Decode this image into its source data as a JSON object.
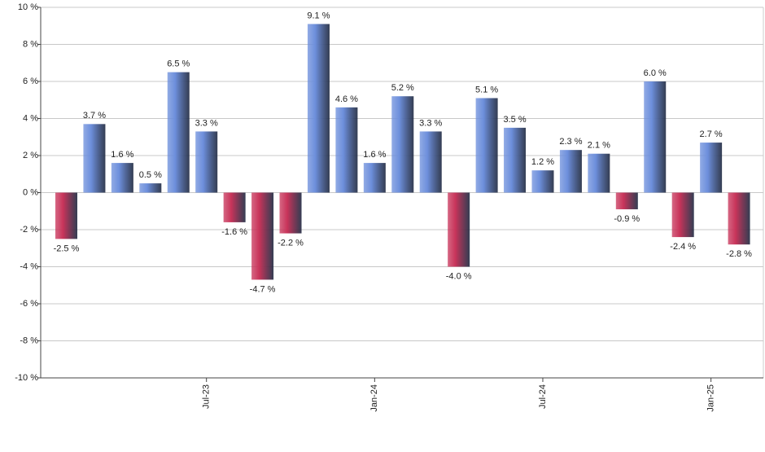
{
  "chart_data": {
    "type": "bar",
    "categories": [
      null,
      null,
      null,
      null,
      null,
      "Jul-23",
      null,
      null,
      null,
      null,
      null,
      "Jan-24",
      null,
      null,
      null,
      null,
      null,
      "Jul-24",
      null,
      null,
      null,
      null,
      null,
      "Jan-25",
      null
    ],
    "values": [
      -2.5,
      3.7,
      1.6,
      0.5,
      6.5,
      3.3,
      -1.6,
      -4.7,
      -2.2,
      9.1,
      4.6,
      1.6,
      5.2,
      3.3,
      -4.0,
      5.1,
      3.5,
      1.2,
      2.3,
      2.1,
      -0.9,
      6.0,
      -2.4,
      2.7,
      -2.8
    ],
    "value_labels": [
      "-2.5 %",
      "3.7 %",
      "1.6 %",
      "0.5 %",
      "6.5 %",
      "3.3 %",
      "-1.6 %",
      "-4.7 %",
      "-2.2 %",
      "9.1 %",
      "4.6 %",
      "1.6 %",
      "5.2 %",
      "3.3 %",
      "-4.0 %",
      "5.1 %",
      "3.5 %",
      "1.2 %",
      "2.3 %",
      "2.1 %",
      "-0.9 %",
      "6.0 %",
      "-2.4 %",
      "2.7 %",
      "-2.8 %"
    ],
    "color": "#6d8fdc",
    "negative_color": "#c8345a",
    "ylim": [
      -10,
      10
    ],
    "yticks": [
      {
        "value": -10,
        "label": "-10 %"
      },
      {
        "value": -8,
        "label": "-8 %"
      },
      {
        "value": -6,
        "label": "-6 %"
      },
      {
        "value": -4,
        "label": "-4 %"
      },
      {
        "value": -2,
        "label": "-2 %"
      },
      {
        "value": 0,
        "label": "0 %"
      },
      {
        "value": 2,
        "label": "2 %"
      },
      {
        "value": 4,
        "label": "4 %"
      },
      {
        "value": 6,
        "label": "6 %"
      },
      {
        "value": 8,
        "label": "8 %"
      },
      {
        "value": 10,
        "label": "10 %"
      }
    ],
    "grid": true
  }
}
